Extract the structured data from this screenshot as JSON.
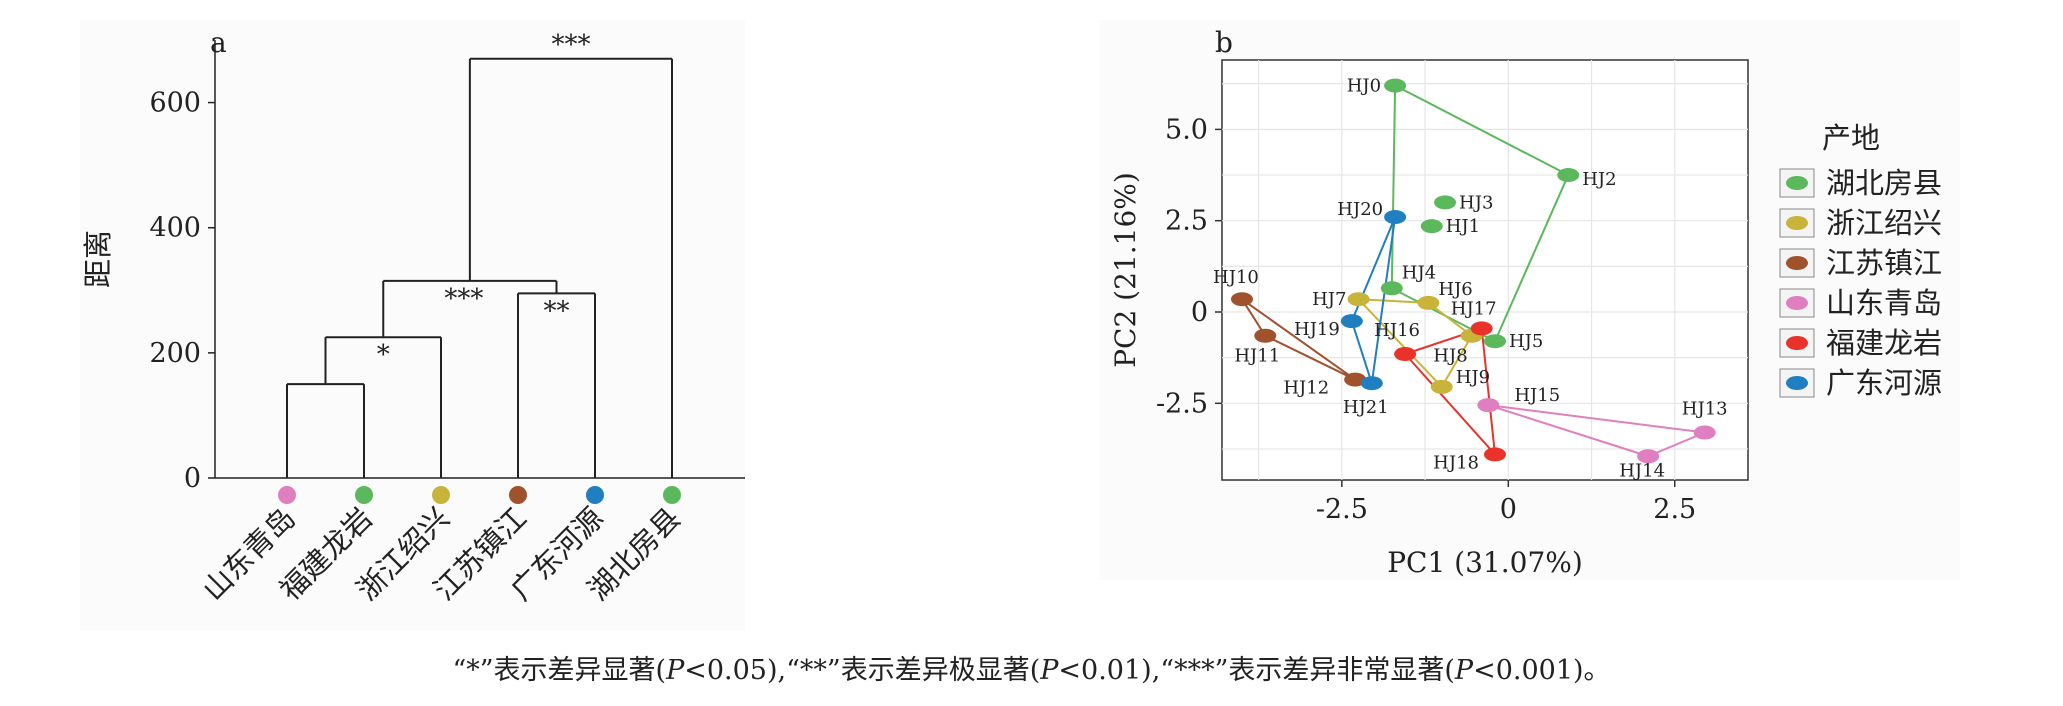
{
  "chart_data": [
    {
      "type": "dendrogram",
      "panel_label": "a",
      "ylabel": "距离",
      "ylim": [
        0,
        700
      ],
      "yticks": [
        0,
        200,
        400,
        600
      ],
      "leaves": [
        {
          "label": "山东青岛",
          "color": "#e07fc0"
        },
        {
          "label": "福建龙岩",
          "color": "#5cb85c"
        },
        {
          "label": "浙江绍兴",
          "color": "#c8b43a"
        },
        {
          "label": "江苏镇江",
          "color": "#a0522d"
        },
        {
          "label": "广东河源",
          "color": "#1f7fc0"
        },
        {
          "label": "湖北房县",
          "color": "#5cb85c"
        }
      ],
      "merges": [
        {
          "left": 0,
          "right": 1,
          "height": 150,
          "sig": ""
        },
        {
          "left": "m0",
          "right": 2,
          "height": 225,
          "sig": "*"
        },
        {
          "left": 3,
          "right": 4,
          "height": 295,
          "sig": "**"
        },
        {
          "left": "m1",
          "right": "m2",
          "height": 315,
          "sig": "***"
        },
        {
          "left": "m3",
          "right": 5,
          "height": 670,
          "sig": "***"
        }
      ]
    },
    {
      "type": "scatter",
      "panel_label": "b",
      "xlabel": "PC1 (31.07%)",
      "ylabel": "PC2 (21.16%)",
      "xlim": [
        -4.3,
        3.6
      ],
      "ylim": [
        -4.6,
        6.9
      ],
      "xticks": [
        -2.5,
        0,
        2.5
      ],
      "xtick_labels": [
        "-2.5",
        "0",
        "2.5"
      ],
      "yticks": [
        5.0,
        2.5,
        0,
        -2.5
      ],
      "ytick_labels": [
        "5.0",
        "2.5",
        "0",
        "-2.5"
      ],
      "grid": true,
      "legend_title": "产地",
      "legend_position": "right",
      "series": [
        {
          "name": "湖北房县",
          "color": "#5cb85c",
          "points": [
            {
              "label": "HJ0",
              "x": -1.7,
              "y": 6.2
            },
            {
              "label": "HJ2",
              "x": 0.9,
              "y": 3.75
            },
            {
              "label": "HJ3",
              "x": -0.95,
              "y": 3.0
            },
            {
              "label": "HJ1",
              "x": -1.15,
              "y": 2.35
            },
            {
              "label": "HJ4",
              "x": -1.75,
              "y": 0.65
            },
            {
              "label": "HJ5",
              "x": -0.2,
              "y": -0.8
            }
          ],
          "hull": [
            "HJ0",
            "HJ2",
            "HJ5",
            "HJ4"
          ]
        },
        {
          "name": "浙江绍兴",
          "color": "#c8b43a",
          "points": [
            {
              "label": "HJ7",
              "x": -2.25,
              "y": 0.35
            },
            {
              "label": "HJ6",
              "x": -1.2,
              "y": 0.25
            },
            {
              "label": "HJ8",
              "x": -0.55,
              "y": -0.65
            },
            {
              "label": "HJ9",
              "x": -1.0,
              "y": -2.05
            }
          ],
          "hull": [
            "HJ7",
            "HJ6",
            "HJ8",
            "HJ9"
          ]
        },
        {
          "name": "江苏镇江",
          "color": "#a0522d",
          "points": [
            {
              "label": "HJ10",
              "x": -4.0,
              "y": 0.35
            },
            {
              "label": "HJ11",
              "x": -3.65,
              "y": -0.65
            },
            {
              "label": "HJ12",
              "x": -2.3,
              "y": -1.85
            }
          ],
          "hull": [
            "HJ10",
            "HJ11",
            "HJ12"
          ]
        },
        {
          "name": "山东青岛",
          "color": "#e07fc0",
          "points": [
            {
              "label": "HJ15",
              "x": -0.3,
              "y": -2.55
            },
            {
              "label": "HJ13",
              "x": 2.95,
              "y": -3.3
            },
            {
              "label": "HJ14",
              "x": 2.1,
              "y": -3.95
            }
          ],
          "hull": [
            "HJ15",
            "HJ13",
            "HJ14"
          ]
        },
        {
          "name": "福建龙岩",
          "color": "#e8322a",
          "points": [
            {
              "label": "HJ17",
              "x": -0.4,
              "y": -0.45
            },
            {
              "label": "HJ16",
              "x": -1.55,
              "y": -1.15
            },
            {
              "label": "HJ18",
              "x": -0.2,
              "y": -3.9
            }
          ],
          "hull": [
            "HJ17",
            "HJ16",
            "HJ18"
          ]
        },
        {
          "name": "广东河源",
          "color": "#1f7fc0",
          "points": [
            {
              "label": "HJ20",
              "x": -1.7,
              "y": 2.6
            },
            {
              "label": "HJ19",
              "x": -2.35,
              "y": -0.25
            },
            {
              "label": "HJ21",
              "x": -2.05,
              "y": -1.95
            }
          ],
          "hull": [
            "HJ20",
            "HJ19",
            "HJ21"
          ]
        }
      ]
    }
  ],
  "caption": {
    "p1": "“*”表示差异显著(",
    "p": "P",
    "p2": "<0.05),“**”表示差异极显著(",
    "p3": "<0.01),“***”表示差异非常显著(",
    "p4": "<0.001)。"
  }
}
